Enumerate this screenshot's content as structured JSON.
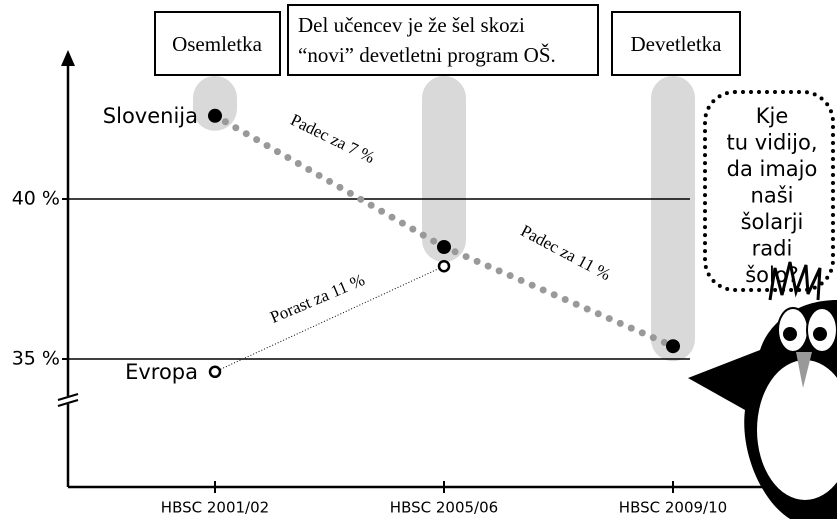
{
  "chart_data": {
    "type": "line",
    "categories": [
      "HBSC 2001/02",
      "HBSC 2005/06",
      "HBSC 2009/10"
    ],
    "series": [
      {
        "name": "Slovenija",
        "color": "#999999",
        "values": [
          42.6,
          38.5,
          35.4
        ]
      },
      {
        "name": "Evropa",
        "color": "#000000",
        "values": [
          34.6,
          37.9,
          null
        ]
      }
    ],
    "ylim": [
      31,
      44.5
    ],
    "yticks": [
      {
        "value": 35,
        "label": "35 %"
      },
      {
        "value": 40,
        "label": "40 %"
      }
    ],
    "grid": true,
    "headers": [
      "Osemletka",
      "Del učencev je že šel skozi",
      "“novi” devetletni program OŠ.",
      "Devetletka"
    ],
    "annotations": [
      "Padec za 7 %",
      "Padec za 11 %",
      "Porast za 11 %"
    ],
    "bubble": [
      "Kje",
      "tu vidijo,",
      "da imajo",
      "naši",
      "šolarji",
      "radi",
      "šolo?"
    ]
  }
}
